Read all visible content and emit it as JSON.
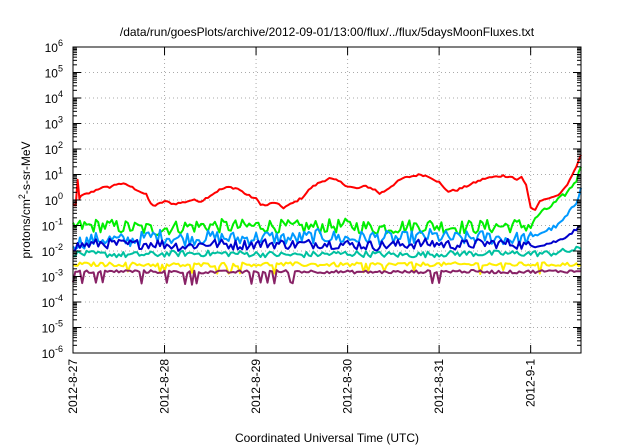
{
  "chart_data": {
    "type": "line",
    "title": "/data/run/goesPlots/archive/2012-09-01/13:00/flux/../flux/5daysMoonFluxes.txt",
    "xlabel": "Coordinated Universal Time (UTC)",
    "ylabel": "protons/cm2-s-sr-MeV",
    "ylabel_parts": {
      "base": "protons/cm",
      "sup": "2",
      "rest": "-s-sr-MeV"
    },
    "y_scale": "log",
    "ylim_exp": [
      -6,
      6
    ],
    "y_tick_exponents": [
      -6,
      -5,
      -4,
      -3,
      -2,
      -1,
      0,
      1,
      2,
      3,
      4,
      5,
      6
    ],
    "y_tick_base": "10",
    "xlim_days": [
      0,
      5.55
    ],
    "x_ticks": [
      {
        "label": "2012-8-27",
        "day": 0
      },
      {
        "label": "2012-8-28",
        "day": 1
      },
      {
        "label": "2012-8-29",
        "day": 2
      },
      {
        "label": "2012-8-30",
        "day": 3
      },
      {
        "label": "2012-8-31",
        "day": 4
      },
      {
        "label": "2012-9-1",
        "day": 5
      }
    ],
    "grid": true,
    "grid_style": "dotted",
    "series": [
      {
        "color": "#ff0000",
        "points": [
          [
            0,
            0.7
          ],
          [
            0.03,
            0.6
          ],
          [
            0.05,
            6
          ],
          [
            0.07,
            1.2
          ],
          [
            0.1,
            1.5
          ],
          [
            0.2,
            2
          ],
          [
            0.3,
            3
          ],
          [
            0.4,
            3.2
          ],
          [
            0.5,
            4.5
          ],
          [
            0.6,
            3.8
          ],
          [
            0.7,
            2.5
          ],
          [
            0.8,
            1.6
          ],
          [
            0.85,
            0.7
          ],
          [
            0.9,
            0.6
          ],
          [
            1.0,
            0.9
          ],
          [
            1.1,
            0.7
          ],
          [
            1.2,
            0.8
          ],
          [
            1.3,
            1
          ],
          [
            1.4,
            0.9
          ],
          [
            1.5,
            1.5
          ],
          [
            1.6,
            2.5
          ],
          [
            1.7,
            3.2
          ],
          [
            1.8,
            2.8
          ],
          [
            1.9,
            1.6
          ],
          [
            2.0,
            1.1
          ],
          [
            2.05,
            0.7
          ],
          [
            2.1,
            0.6
          ],
          [
            2.2,
            0.8
          ],
          [
            2.3,
            0.5
          ],
          [
            2.4,
            0.75
          ],
          [
            2.5,
            1.2
          ],
          [
            2.6,
            3
          ],
          [
            2.7,
            5
          ],
          [
            2.8,
            7
          ],
          [
            2.9,
            5.5
          ],
          [
            3.0,
            3.5
          ],
          [
            3.1,
            2.8
          ],
          [
            3.2,
            3.5
          ],
          [
            3.3,
            2.5
          ],
          [
            3.35,
            1.8
          ],
          [
            3.4,
            2.2
          ],
          [
            3.5,
            4
          ],
          [
            3.6,
            7
          ],
          [
            3.7,
            8.5
          ],
          [
            3.8,
            10
          ],
          [
            3.9,
            8
          ],
          [
            4.0,
            5
          ],
          [
            4.05,
            3
          ],
          [
            4.1,
            2.2
          ],
          [
            4.2,
            2.5
          ],
          [
            4.3,
            3.5
          ],
          [
            4.4,
            5
          ],
          [
            4.5,
            7
          ],
          [
            4.6,
            8
          ],
          [
            4.7,
            9
          ],
          [
            4.8,
            8
          ],
          [
            4.85,
            6
          ],
          [
            4.9,
            8
          ],
          [
            4.95,
            4
          ],
          [
            5.0,
            0.5
          ],
          [
            5.05,
            0.4
          ],
          [
            5.1,
            0.9
          ],
          [
            5.2,
            1.2
          ],
          [
            5.3,
            1.5
          ],
          [
            5.4,
            4
          ],
          [
            5.5,
            20
          ],
          [
            5.55,
            60
          ]
        ]
      },
      {
        "color": "#00ee00",
        "points": [
          [
            0,
            0.09
          ],
          [
            0.3,
            0.1
          ],
          [
            0.6,
            0.085
          ],
          [
            0.9,
            0.07
          ],
          [
            1.2,
            0.09
          ],
          [
            1.5,
            0.1
          ],
          [
            1.8,
            0.09
          ],
          [
            2.1,
            0.1
          ],
          [
            2.4,
            0.085
          ],
          [
            2.7,
            0.09
          ],
          [
            3.0,
            0.1
          ],
          [
            3.3,
            0.08
          ],
          [
            3.6,
            0.09
          ],
          [
            3.9,
            0.1
          ],
          [
            4.2,
            0.085
          ],
          [
            4.5,
            0.09
          ],
          [
            4.8,
            0.1
          ],
          [
            5.0,
            0.1
          ],
          [
            5.1,
            0.3
          ],
          [
            5.2,
            0.5
          ],
          [
            5.3,
            1
          ],
          [
            5.4,
            2
          ],
          [
            5.5,
            6
          ],
          [
            5.55,
            20
          ]
        ]
      },
      {
        "color": "#0099ff",
        "points": [
          [
            0,
            0.02
          ],
          [
            0.3,
            0.03
          ],
          [
            0.6,
            0.025
          ],
          [
            0.9,
            0.04
          ],
          [
            1.2,
            0.03
          ],
          [
            1.5,
            0.035
          ],
          [
            1.8,
            0.03
          ],
          [
            2.1,
            0.035
          ],
          [
            2.4,
            0.03
          ],
          [
            2.7,
            0.04
          ],
          [
            3.0,
            0.03
          ],
          [
            3.3,
            0.035
          ],
          [
            3.6,
            0.03
          ],
          [
            3.9,
            0.04
          ],
          [
            4.2,
            0.03
          ],
          [
            4.5,
            0.035
          ],
          [
            4.8,
            0.03
          ],
          [
            5.0,
            0.03
          ],
          [
            5.1,
            0.05
          ],
          [
            5.2,
            0.07
          ],
          [
            5.3,
            0.1
          ],
          [
            5.4,
            0.25
          ],
          [
            5.5,
            0.8
          ],
          [
            5.55,
            3
          ]
        ]
      },
      {
        "color": "#0000cc",
        "points": [
          [
            0,
            0.015
          ],
          [
            0.3,
            0.02
          ],
          [
            0.6,
            0.018
          ],
          [
            0.9,
            0.02
          ],
          [
            1.2,
            0.015
          ],
          [
            1.5,
            0.02
          ],
          [
            1.8,
            0.017
          ],
          [
            2.1,
            0.02
          ],
          [
            2.4,
            0.018
          ],
          [
            2.7,
            0.02
          ],
          [
            3.0,
            0.018
          ],
          [
            3.3,
            0.016
          ],
          [
            3.6,
            0.018
          ],
          [
            3.9,
            0.02
          ],
          [
            4.2,
            0.017
          ],
          [
            4.5,
            0.02
          ],
          [
            4.8,
            0.02
          ],
          [
            5.0,
            0.015
          ],
          [
            5.1,
            0.017
          ],
          [
            5.2,
            0.02
          ],
          [
            5.3,
            0.025
          ],
          [
            5.4,
            0.04
          ],
          [
            5.5,
            0.07
          ],
          [
            5.55,
            0.1
          ]
        ]
      },
      {
        "color": "#00c0a0",
        "points": [
          [
            0,
            0.008
          ],
          [
            0.6,
            0.007
          ],
          [
            1.2,
            0.008
          ],
          [
            1.8,
            0.008
          ],
          [
            2.4,
            0.007
          ],
          [
            3.0,
            0.008
          ],
          [
            3.6,
            0.007
          ],
          [
            4.2,
            0.008
          ],
          [
            4.8,
            0.008
          ],
          [
            5.0,
            0.008
          ],
          [
            5.2,
            0.008
          ],
          [
            5.4,
            0.01
          ],
          [
            5.55,
            0.012
          ]
        ]
      },
      {
        "color": "#ffee00",
        "points": [
          [
            0,
            0.003
          ],
          [
            0.6,
            0.003
          ],
          [
            1.2,
            0.0028
          ],
          [
            1.8,
            0.003
          ],
          [
            2.4,
            0.003
          ],
          [
            3.0,
            0.0029
          ],
          [
            3.6,
            0.003
          ],
          [
            4.2,
            0.003
          ],
          [
            4.8,
            0.003
          ],
          [
            5.2,
            0.003
          ],
          [
            5.55,
            0.003
          ]
        ]
      },
      {
        "color": "#882266",
        "points": [
          [
            0,
            0.0015
          ],
          [
            0.6,
            0.0016
          ],
          [
            1.2,
            0.0015
          ],
          [
            1.8,
            0.0015
          ],
          [
            2.4,
            0.0016
          ],
          [
            3.0,
            0.0015
          ],
          [
            3.6,
            0.0015
          ],
          [
            4.2,
            0.0016
          ],
          [
            4.8,
            0.0015
          ],
          [
            5.2,
            0.0016
          ],
          [
            5.55,
            0.0016
          ]
        ]
      }
    ]
  }
}
